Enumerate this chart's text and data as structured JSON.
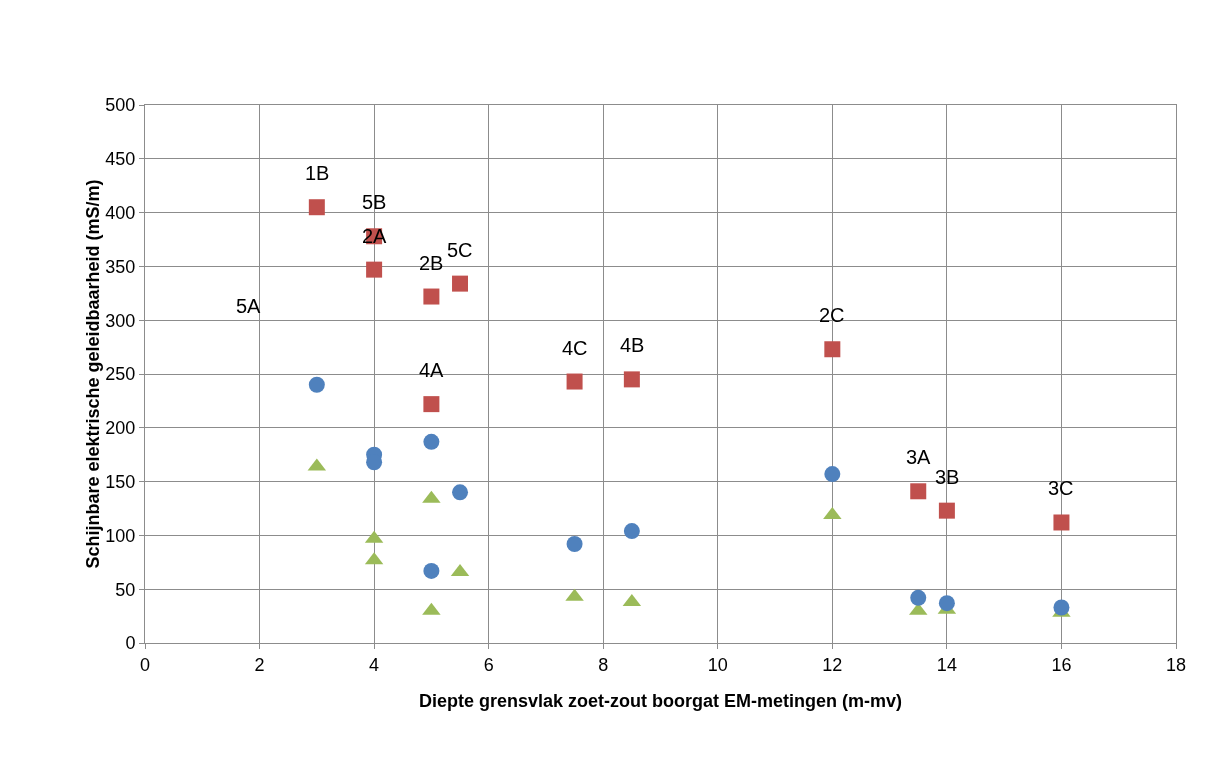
{
  "chart_data": {
    "type": "scatter",
    "xlabel": "Diepte grensvlak zoet-zout boorgat EM-metingen (m-mv)",
    "ylabel": "Schijnbare elektrische geleidbaarheid (mS/m)",
    "xlim": [
      0,
      18
    ],
    "xticks": [
      0,
      2,
      4,
      6,
      8,
      10,
      12,
      14,
      16,
      18
    ],
    "ylim": [
      0,
      500
    ],
    "yticks": [
      0,
      50,
      100,
      150,
      200,
      250,
      300,
      350,
      400,
      450,
      500
    ],
    "grid": true,
    "series": [
      {
        "color": "#9bbb59",
        "marker": "triangle",
        "x": [
          3,
          4,
          4,
          5,
          5,
          5.5,
          7.5,
          8.5,
          12,
          13.5,
          14,
          16
        ],
        "values": [
          164,
          97,
          77,
          134,
          30,
          66,
          43,
          38,
          119,
          30,
          31,
          28
        ]
      },
      {
        "color": "#4f81bd",
        "marker": "circle",
        "x": [
          3,
          4,
          4,
          5,
          5,
          5.5,
          7.5,
          8.5,
          12,
          13.5,
          14,
          16
        ],
        "values": [
          240,
          175,
          168,
          187,
          67,
          140,
          92,
          104,
          157,
          42,
          37,
          33
        ]
      },
      {
        "color": "#c0504d",
        "marker": "square",
        "x": [
          3,
          4,
          4,
          5,
          5,
          5.5,
          7.5,
          8.5,
          12,
          13.5,
          14,
          16
        ],
        "values": [
          405,
          378,
          347,
          322,
          222,
          334,
          243,
          245,
          273,
          141,
          123,
          112
        ]
      }
    ],
    "annotations": [
      {
        "text": "1B",
        "x": 3,
        "y": 405
      },
      {
        "text": "5B",
        "x": 4,
        "y": 378
      },
      {
        "text": "2A",
        "x": 4,
        "y": 347
      },
      {
        "text": "2B",
        "x": 5,
        "y": 322
      },
      {
        "text": "5C",
        "x": 5.5,
        "y": 334
      },
      "5A",
      {
        "text": "4A",
        "x": 5,
        "y": 222
      },
      {
        "text": "4C",
        "x": 7.5,
        "y": 243
      },
      {
        "text": "4B",
        "x": 8.5,
        "y": 245
      },
      {
        "text": "2C",
        "x": 12,
        "y": 273
      },
      {
        "text": "3A",
        "x": 13.5,
        "y": 141
      },
      {
        "text": "3B",
        "x": 14,
        "y": 123
      },
      {
        "text": "3C",
        "x": 16,
        "y": 112
      }
    ]
  }
}
